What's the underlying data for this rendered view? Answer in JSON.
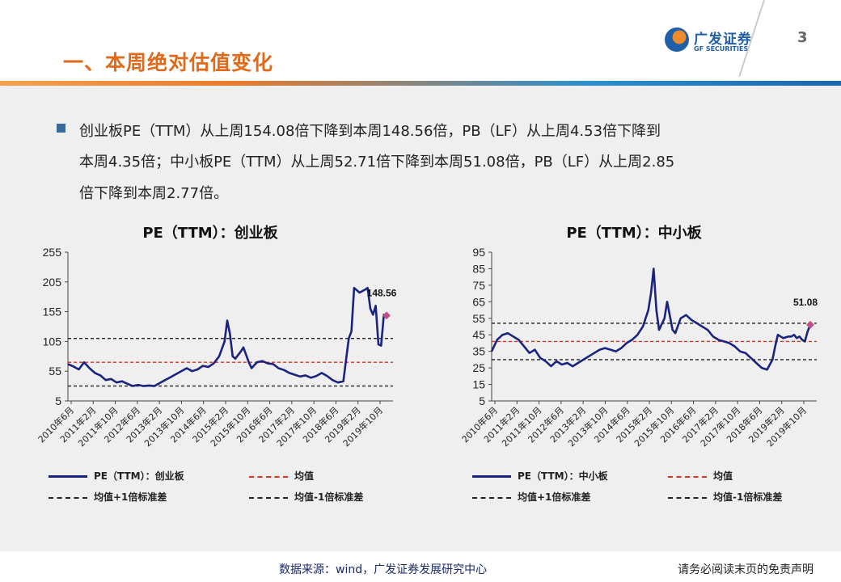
{
  "header": {
    "title": "一、本周绝对估值变化",
    "logo_cn": "广发证券",
    "logo_en": "GF SECURITIES",
    "page_number": "3"
  },
  "summary": {
    "lines": [
      "创业板PE（TTM）从上周154.08倍下降到本周148.56倍，PB（LF）从上周4.53倍下降到",
      "本周4.35倍；中小板PE（TTM）从上周52.71倍下降到本周51.08倍，PB（LF）从上周2.85",
      "倍下降到本周2.77倍。"
    ]
  },
  "footer": {
    "source": "数据来源：wind，广发证券发展研究中心",
    "disclaimer": "请务必阅读末页的免责声明"
  },
  "colors": {
    "series": "#1a237e",
    "mean": "#e03020",
    "band": "#222222",
    "last_point": "#c0508a"
  },
  "chart_data": [
    {
      "type": "line",
      "title": "PE（TTM）：创业板",
      "x_tick_labels": [
        "2010年6月",
        "2011年2月",
        "2011年10月",
        "2012年6月",
        "2013年2月",
        "2013年10月",
        "2014年6月",
        "2015年2月",
        "2015年10月",
        "2016年6月",
        "2017年2月",
        "2017年10月",
        "2018年6月",
        "2019年2月",
        "2019年10月"
      ],
      "yticks": [
        5,
        55,
        105,
        155,
        205,
        255
      ],
      "ylim": [
        5,
        255
      ],
      "grid": false,
      "x_range": [
        "2010-06",
        "2020-04"
      ],
      "series": [
        {
          "name": "PE（TTM）：创业板",
          "points": [
            [
              "2010-06",
              67
            ],
            [
              "2010-08",
              63
            ],
            [
              "2010-10",
              58
            ],
            [
              "2010-12",
              70
            ],
            [
              "2011-02",
              60
            ],
            [
              "2011-04",
              52
            ],
            [
              "2011-06",
              48
            ],
            [
              "2011-08",
              40
            ],
            [
              "2011-10",
              42
            ],
            [
              "2011-12",
              36
            ],
            [
              "2012-02",
              38
            ],
            [
              "2012-04",
              34
            ],
            [
              "2012-06",
              30
            ],
            [
              "2012-08",
              32
            ],
            [
              "2012-10",
              30
            ],
            [
              "2012-12",
              31
            ],
            [
              "2013-02",
              30
            ],
            [
              "2013-04",
              35
            ],
            [
              "2013-06",
              40
            ],
            [
              "2013-08",
              45
            ],
            [
              "2013-10",
              50
            ],
            [
              "2013-12",
              55
            ],
            [
              "2014-02",
              60
            ],
            [
              "2014-04",
              55
            ],
            [
              "2014-06",
              58
            ],
            [
              "2014-08",
              64
            ],
            [
              "2014-10",
              62
            ],
            [
              "2014-12",
              68
            ],
            [
              "2015-02",
              80
            ],
            [
              "2015-04",
              105
            ],
            [
              "2015-05",
              140
            ],
            [
              "2015-06",
              118
            ],
            [
              "2015-07",
              80
            ],
            [
              "2015-08",
              76
            ],
            [
              "2015-10",
              88
            ],
            [
              "2015-11",
              95
            ],
            [
              "2016-01",
              70
            ],
            [
              "2016-02",
              60
            ],
            [
              "2016-04",
              70
            ],
            [
              "2016-06",
              72
            ],
            [
              "2016-08",
              68
            ],
            [
              "2016-10",
              67
            ],
            [
              "2016-12",
              60
            ],
            [
              "2017-02",
              57
            ],
            [
              "2017-04",
              52
            ],
            [
              "2017-06",
              49
            ],
            [
              "2017-08",
              46
            ],
            [
              "2017-10",
              48
            ],
            [
              "2017-12",
              44
            ],
            [
              "2018-02",
              47
            ],
            [
              "2018-04",
              52
            ],
            [
              "2018-06",
              47
            ],
            [
              "2018-08",
              40
            ],
            [
              "2018-10",
              36
            ],
            [
              "2018-12",
              38
            ],
            [
              "2019-02",
              110
            ],
            [
              "2019-03",
              122
            ],
            [
              "2019-04",
              195
            ],
            [
              "2019-06",
              187
            ],
            [
              "2019-08",
              192
            ],
            [
              "2019-09",
              195
            ],
            [
              "2019-10",
              160
            ],
            [
              "2019-11",
              150
            ],
            [
              "2019-12",
              165
            ],
            [
              "2020-01",
              100
            ],
            [
              "2020-02",
              98
            ],
            [
              "2020-03",
              150
            ],
            [
              "2020-04",
              148.56
            ]
          ]
        },
        {
          "name": "均值",
          "value": 70
        },
        {
          "name": "均值+1倍标准差",
          "value": 110
        },
        {
          "name": "均值-1倍标准差",
          "value": 30
        }
      ],
      "last_value_label": "148.56",
      "legend": [
        "PE（TTM）：创业板",
        "均值",
        "均值+1倍标准差",
        "均值-1倍标准差"
      ],
      "legend_placement": "bottom"
    },
    {
      "type": "line",
      "title": "PE（TTM）：中小板",
      "x_tick_labels": [
        "2010年6月",
        "2011年2月",
        "2011年10月",
        "2012年6月",
        "2013年2月",
        "2013年10月",
        "2014年6月",
        "2015年2月",
        "2015年10月",
        "2016年6月",
        "2017年2月",
        "2017年10月",
        "2018年6月",
        "2019年2月",
        "2019年10月"
      ],
      "yticks": [
        5,
        15,
        25,
        35,
        45,
        55,
        65,
        75,
        85,
        95
      ],
      "ylim": [
        5,
        95
      ],
      "grid": false,
      "x_range": [
        "2010-06",
        "2020-04"
      ],
      "series": [
        {
          "name": "PE（TTM）：中小板",
          "points": [
            [
              "2010-06",
              35
            ],
            [
              "2010-08",
              42
            ],
            [
              "2010-10",
              45
            ],
            [
              "2010-12",
              46
            ],
            [
              "2011-02",
              44
            ],
            [
              "2011-04",
              42
            ],
            [
              "2011-06",
              38
            ],
            [
              "2011-08",
              34
            ],
            [
              "2011-10",
              36
            ],
            [
              "2011-12",
              31
            ],
            [
              "2012-02",
              29
            ],
            [
              "2012-04",
              26
            ],
            [
              "2012-06",
              29
            ],
            [
              "2012-08",
              27
            ],
            [
              "2012-10",
              28
            ],
            [
              "2012-12",
              26
            ],
            [
              "2013-02",
              28
            ],
            [
              "2013-04",
              30
            ],
            [
              "2013-06",
              32
            ],
            [
              "2013-08",
              34
            ],
            [
              "2013-10",
              36
            ],
            [
              "2013-12",
              37
            ],
            [
              "2014-02",
              36
            ],
            [
              "2014-04",
              35
            ],
            [
              "2014-06",
              37
            ],
            [
              "2014-08",
              40
            ],
            [
              "2014-10",
              42
            ],
            [
              "2014-12",
              45
            ],
            [
              "2015-02",
              50
            ],
            [
              "2015-04",
              60
            ],
            [
              "2015-05",
              70
            ],
            [
              "2015-06",
              85
            ],
            [
              "2015-07",
              60
            ],
            [
              "2015-08",
              48
            ],
            [
              "2015-10",
              55
            ],
            [
              "2015-11",
              65
            ],
            [
              "2016-01",
              48
            ],
            [
              "2016-02",
              46
            ],
            [
              "2016-04",
              55
            ],
            [
              "2016-06",
              57
            ],
            [
              "2016-08",
              54
            ],
            [
              "2016-10",
              52
            ],
            [
              "2016-12",
              50
            ],
            [
              "2017-02",
              48
            ],
            [
              "2017-04",
              44
            ],
            [
              "2017-06",
              42
            ],
            [
              "2017-08",
              41
            ],
            [
              "2017-10",
              40
            ],
            [
              "2017-12",
              38
            ],
            [
              "2018-02",
              35
            ],
            [
              "2018-04",
              34
            ],
            [
              "2018-06",
              31
            ],
            [
              "2018-08",
              28
            ],
            [
              "2018-10",
              25
            ],
            [
              "2018-12",
              24
            ],
            [
              "2019-02",
              30
            ],
            [
              "2019-03",
              38
            ],
            [
              "2019-04",
              45
            ],
            [
              "2019-06",
              43
            ],
            [
              "2019-08",
              44
            ],
            [
              "2019-09",
              44
            ],
            [
              "2019-10",
              45
            ],
            [
              "2019-11",
              43
            ],
            [
              "2019-12",
              44
            ],
            [
              "2020-01",
              42
            ],
            [
              "2020-02",
              41
            ],
            [
              "2020-03",
              47
            ],
            [
              "2020-04",
              51.08
            ]
          ]
        },
        {
          "name": "均值",
          "value": 41
        },
        {
          "name": "均值+1倍标准差",
          "value": 52
        },
        {
          "name": "均值-1倍标准差",
          "value": 30
        }
      ],
      "last_value_label": "51.08",
      "legend": [
        "PE（TTM）：中小板",
        "均值",
        "均值+1倍标准差",
        "均值-1倍标准差"
      ],
      "legend_placement": "bottom"
    }
  ]
}
